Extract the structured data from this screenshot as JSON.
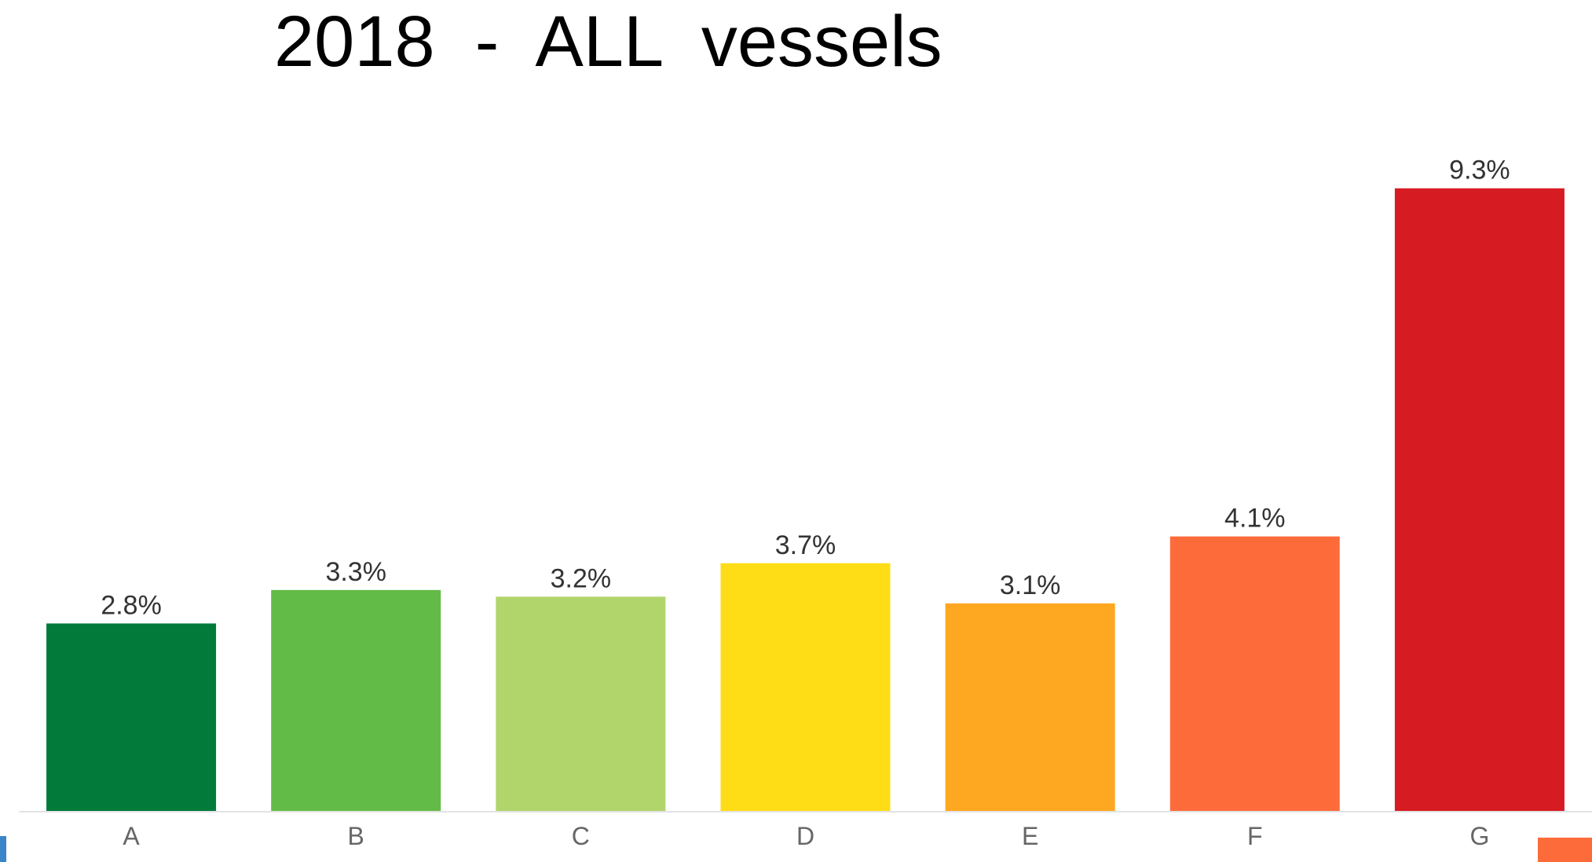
{
  "chart_data": {
    "type": "bar",
    "title": "2018  -  ALL  vessels",
    "categories": [
      "A",
      "B",
      "C",
      "D",
      "E",
      "F",
      "G"
    ],
    "values": [
      2.8,
      3.3,
      3.2,
      3.7,
      3.1,
      4.1,
      9.3
    ],
    "value_labels": [
      "2.8%",
      "3.3%",
      "3.2%",
      "3.7%",
      "3.1%",
      "4.1%",
      "9.3%"
    ],
    "colors": [
      "#027a3a",
      "#63bb47",
      "#b1d56b",
      "#fedd17",
      "#fea720",
      "#fe6b3b",
      "#d71b23"
    ],
    "ylim": [
      0,
      10
    ]
  }
}
